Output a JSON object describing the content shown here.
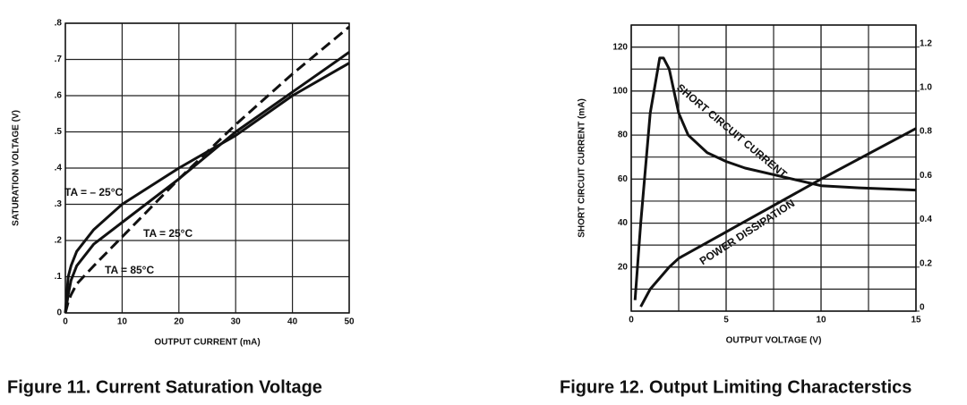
{
  "chart_data": [
    {
      "type": "line",
      "title": "Figure 11. Current Saturation Voltage",
      "xlabel": "OUTPUT CURRENT (mA)",
      "ylabel": "SATURATION VOLTAGE (V)",
      "xlim": [
        0,
        50
      ],
      "xticks": [
        0,
        10,
        20,
        30,
        40,
        50
      ],
      "ylim": [
        0,
        0.8
      ],
      "yticks": [
        0,
        {
          "value": 0.1,
          "label": ".1"
        },
        {
          "value": 0.2,
          "label": ".2"
        },
        {
          "value": 0.3,
          "label": ".3"
        },
        {
          "value": 0.4,
          "label": ".4"
        },
        {
          "value": 0.5,
          "label": ".5"
        },
        {
          "value": 0.6,
          "label": ".6"
        },
        {
          "value": 0.7,
          "label": ".7"
        },
        {
          "value": 0.8,
          "label": ".8"
        }
      ],
      "grid": true,
      "series": [
        {
          "name": "TA = – 25°C",
          "color": "#111111",
          "dashed": false,
          "x": [
            0,
            0.5,
            1,
            2,
            5,
            10,
            20,
            30,
            40,
            50
          ],
          "values": [
            0,
            0.1,
            0.13,
            0.17,
            0.23,
            0.3,
            0.4,
            0.49,
            0.6,
            0.69
          ]
        },
        {
          "name": "TA = 25°C",
          "color": "#111111",
          "dashed": false,
          "x": [
            0,
            0.5,
            1,
            2,
            5,
            10,
            20,
            30,
            40,
            50
          ],
          "values": [
            0,
            0.05,
            0.09,
            0.13,
            0.19,
            0.25,
            0.37,
            0.5,
            0.61,
            0.72
          ]
        },
        {
          "name": "TA = 85°C",
          "color": "#111111",
          "dashed": true,
          "x": [
            0,
            0.5,
            1,
            2,
            5,
            10,
            20,
            30,
            40,
            50
          ],
          "values": [
            0,
            0.03,
            0.05,
            0.08,
            0.13,
            0.21,
            0.37,
            0.52,
            0.66,
            0.79
          ]
        }
      ]
    },
    {
      "type": "line",
      "title": "Figure 12. Output Limiting Characterstics",
      "xlabel": "OUTPUT VOLTAGE (V)",
      "ylabel": "SHORT CIRCUIT CURRENT (mA)",
      "xlim": [
        0,
        15
      ],
      "xticks": [
        0,
        5,
        10,
        15
      ],
      "xgrid_step": 2.5,
      "ylim": [
        0,
        130
      ],
      "yticks": [
        20,
        40,
        60,
        80,
        100,
        120
      ],
      "ygrid_step": 10,
      "y2lim": [
        0,
        1.3
      ],
      "y2ticks": [
        0,
        0.2,
        0.4,
        0.6,
        0.8,
        {
          "value": 1,
          "label": "1.0"
        },
        1.2
      ],
      "grid": true,
      "series": [
        {
          "name": "SHORT CIRCUIT CURRENT",
          "color": "#111111",
          "dashed": false,
          "x": [
            0.2,
            0.5,
            1,
            1.5,
            1.7,
            2,
            2.5,
            3,
            4,
            5,
            6,
            8,
            10,
            12,
            15
          ],
          "values": [
            5,
            40,
            90,
            115,
            115,
            110,
            90,
            80,
            72,
            68,
            65,
            61,
            57,
            56,
            55
          ]
        },
        {
          "name": "POWER DISSIPATION",
          "color": "#111111",
          "dashed": false,
          "axis": "y2",
          "x": [
            0.5,
            1,
            2,
            2.5,
            5,
            10,
            15
          ],
          "values": [
            0.02,
            0.1,
            0.2,
            0.24,
            0.36,
            0.6,
            0.83
          ]
        }
      ]
    }
  ]
}
